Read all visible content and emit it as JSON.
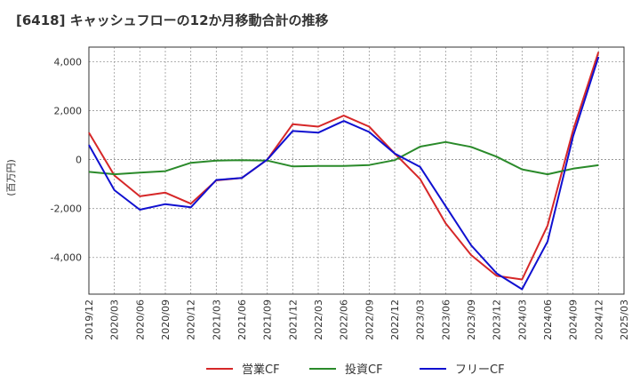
{
  "chart_data": {
    "type": "line",
    "title": "[6418]  キャッシュフローの12か月移動合計の推移",
    "ylabel": "(百万円)",
    "xlabel": "",
    "ylim": [
      -5500,
      4600
    ],
    "yticks": [
      4000,
      2000,
      0,
      -2000,
      -4000
    ],
    "ytick_labels": [
      "4,000",
      "2,000",
      "0",
      "-2,000",
      "-4,000"
    ],
    "x": [
      "2019/12",
      "2020/03",
      "2020/06",
      "2020/09",
      "2020/12",
      "2021/03",
      "2021/06",
      "2021/09",
      "2021/12",
      "2022/03",
      "2022/06",
      "2022/09",
      "2022/12",
      "2023/03",
      "2023/06",
      "2023/09",
      "2023/12",
      "2024/03",
      "2024/06",
      "2024/09",
      "2024/12",
      "2025/03"
    ],
    "grid": true,
    "legend_position": "bottom",
    "series": [
      {
        "name": "営業CF",
        "color": "#d62728",
        "values": [
          1100,
          -650,
          -1500,
          -1350,
          -1800,
          -850,
          -750,
          0,
          1450,
          1350,
          1800,
          1350,
          250,
          -800,
          -2600,
          -3900,
          -4750,
          -4900,
          -2700,
          1200,
          4400,
          null
        ]
      },
      {
        "name": "投資CF",
        "color": "#2a8a2a",
        "values": [
          -500,
          -600,
          -530,
          -470,
          -130,
          -40,
          -20,
          -40,
          -280,
          -260,
          -260,
          -220,
          -20,
          530,
          720,
          520,
          120,
          -400,
          -600,
          -370,
          -230,
          null
        ]
      },
      {
        "name": "フリーCF",
        "color": "#1010d0",
        "values": [
          600,
          -1250,
          -2050,
          -1820,
          -1950,
          -830,
          -750,
          0,
          1170,
          1100,
          1580,
          1130,
          250,
          -300,
          -1900,
          -3500,
          -4650,
          -5300,
          -3350,
          950,
          4200,
          null
        ]
      }
    ]
  }
}
